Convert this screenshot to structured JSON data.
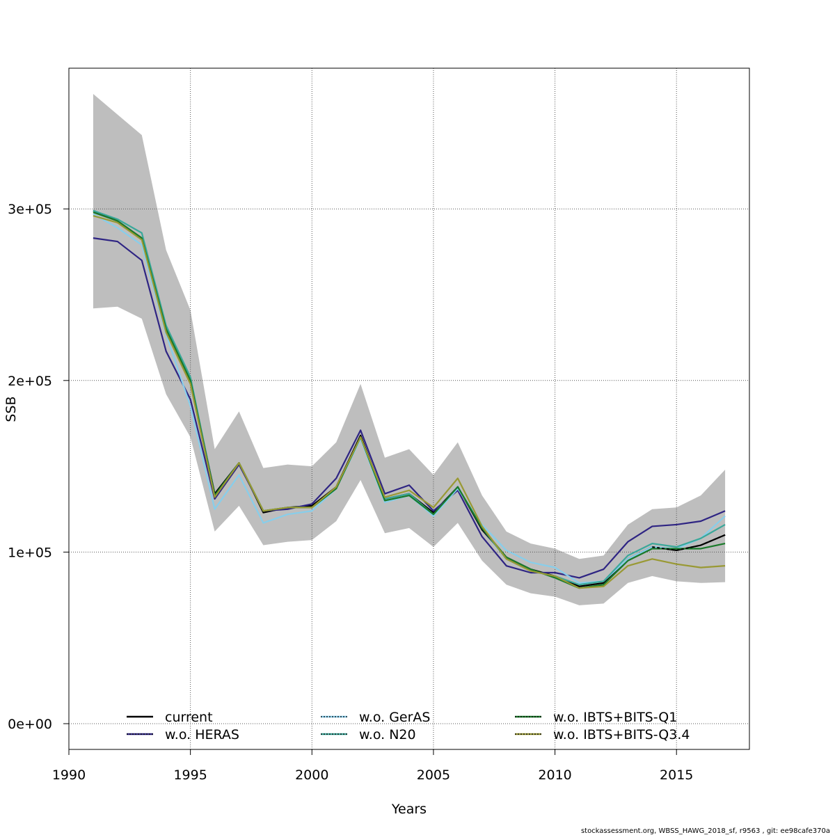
{
  "chart_data": {
    "type": "line",
    "title": "",
    "xlabel": "Years",
    "ylabel": "SSB",
    "xlim": [
      1990,
      2018
    ],
    "ylim": [
      -15000,
      382000
    ],
    "x_ticks": [
      1990,
      1995,
      2000,
      2005,
      2010,
      2015
    ],
    "x_tick_labels": [
      "1990",
      "1995",
      "2000",
      "2005",
      "2010",
      "2015"
    ],
    "y_ticks": [
      0,
      100000,
      200000,
      300000
    ],
    "y_tick_labels": [
      "0e+00",
      "1e+05",
      "2e+05",
      "3e+05"
    ],
    "grid": true,
    "legend_position": "bottom",
    "x": [
      1991,
      1992,
      1993,
      1994,
      1995,
      1996,
      1997,
      1998,
      1999,
      2000,
      2001,
      2002,
      2003,
      2004,
      2005,
      2006,
      2007,
      2008,
      2009,
      2010,
      2011,
      2012,
      2013,
      2014,
      2015,
      2016,
      2017
    ],
    "confidence_band": {
      "color": "#bebebe",
      "lower": [
        242000,
        243000,
        236000,
        192000,
        167000,
        112000,
        127000,
        104000,
        106000,
        107000,
        118000,
        142000,
        111000,
        114000,
        103000,
        117000,
        95000,
        81000,
        76000,
        74000,
        69000,
        70000,
        82000,
        86000,
        83000,
        82000,
        82500
      ],
      "upper": [
        367000,
        355000,
        343000,
        276000,
        241000,
        160000,
        182000,
        149000,
        151000,
        150000,
        164000,
        198000,
        155000,
        160000,
        145000,
        164000,
        133000,
        112000,
        105000,
        102000,
        96000,
        98000,
        116000,
        125000,
        126000,
        133000,
        148000
      ]
    },
    "series": [
      {
        "name": "current",
        "color": "#000000",
        "dash": "",
        "values": [
          299000,
          293000,
          283000,
          230000,
          200000,
          134000,
          152000,
          123000,
          126000,
          127000,
          138000,
          168000,
          131000,
          134000,
          123000,
          138000,
          113000,
          97000,
          90000,
          86000,
          80000,
          82000,
          96000,
          103000,
          101000,
          104000,
          110000
        ]
      },
      {
        "name": "w.o. HERAS",
        "color": "#2e2483",
        "dash": "",
        "values": [
          283000,
          281000,
          270000,
          217000,
          189000,
          131000,
          151000,
          124000,
          125000,
          128000,
          143000,
          171000,
          134000,
          139000,
          124000,
          136000,
          109000,
          92000,
          88000,
          88000,
          85000,
          90000,
          106000,
          115000,
          116000,
          118000,
          124000
        ]
      },
      {
        "name": "w.o. GerAS",
        "color": "#87ceeb",
        "dash": "",
        "values": [
          297000,
          289000,
          279000,
          227000,
          185000,
          125000,
          145000,
          117000,
          122000,
          124000,
          137000,
          166000,
          129000,
          133000,
          121000,
          137000,
          116000,
          101000,
          94000,
          91000,
          82000,
          83000,
          96000,
          103000,
          102000,
          108000,
          121000
        ]
      },
      {
        "name": "w.o. N20",
        "color": "#3aa89a",
        "dash": "",
        "values": [
          299000,
          294000,
          286000,
          232000,
          202000,
          133000,
          152000,
          124000,
          126000,
          126000,
          137000,
          167000,
          131000,
          134000,
          122000,
          138000,
          114000,
          96000,
          89000,
          86000,
          81000,
          83000,
          98000,
          105000,
          103000,
          108000,
          116000
        ]
      },
      {
        "name": "w.o. IBTS+BITS-Q1",
        "color": "#1a7a2a",
        "dash": "",
        "values": [
          298000,
          293000,
          283000,
          230000,
          200000,
          133000,
          152000,
          124000,
          126000,
          126000,
          137000,
          167000,
          130000,
          133000,
          122000,
          138000,
          114000,
          97000,
          90000,
          85000,
          79000,
          81000,
          95000,
          102000,
          102000,
          102000,
          105000
        ]
      },
      {
        "name": "w.o. IBTS+BITS-Q3.4",
        "color": "#999933",
        "dash": "",
        "values": [
          296000,
          292000,
          282000,
          228000,
          198000,
          132000,
          152000,
          124000,
          126000,
          126000,
          138000,
          167000,
          132000,
          136000,
          126000,
          143000,
          115000,
          96000,
          89000,
          86000,
          79000,
          80000,
          92000,
          96000,
          93000,
          91000,
          92000
        ]
      }
    ],
    "legend": {
      "entries": [
        {
          "label": "current",
          "color": "#000000",
          "inner": ""
        },
        {
          "label": "w.o. HERAS",
          "color": "#2e2483",
          "inner": "#000000"
        },
        {
          "label": "w.o. GerAS",
          "color": "#87ceeb",
          "inner": "#000000"
        },
        {
          "label": "w.o. N20",
          "color": "#3aa89a",
          "inner": "#000000"
        },
        {
          "label": "w.o. IBTS+BITS-Q1",
          "color": "#1a7a2a",
          "inner": "#000000"
        },
        {
          "label": "w.o. IBTS+BITS-Q3.4",
          "color": "#999933",
          "inner": "#000000"
        }
      ]
    }
  },
  "footer": "stockassessment.org, WBSS_HAWG_2018_sf, r9563 , git: ee98cafe370a"
}
